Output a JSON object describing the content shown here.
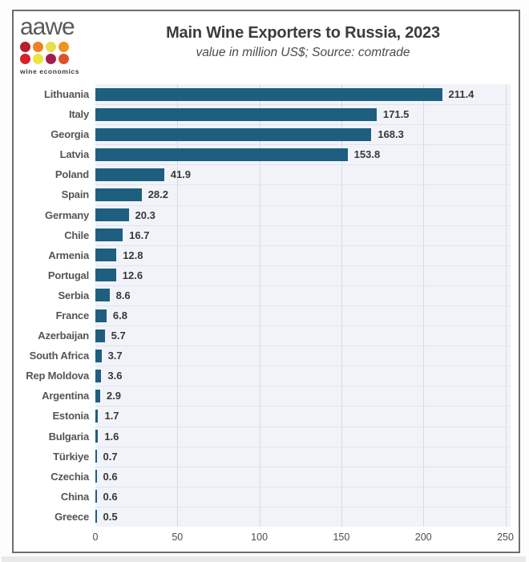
{
  "logo": {
    "name": "aawe",
    "tagline": "wine economics",
    "dot_colors": [
      "#b5202a",
      "#ef8023",
      "#e9dd4a",
      "#f0931e",
      "#d9202b",
      "#ece43f",
      "#a21d4f",
      "#e05127"
    ]
  },
  "header": {
    "title": "Main Wine Exporters to Russia, 2023",
    "subtitle": "value in million US$; Source: comtrade"
  },
  "chart_data": {
    "type": "bar",
    "orientation": "horizontal",
    "title": "Main Wine Exporters to Russia, 2023",
    "subtitle": "value in million US$; Source: comtrade",
    "xlabel": "",
    "ylabel": "",
    "categories": [
      "Lithuania",
      "Italy",
      "Georgia",
      "Latvia",
      "Poland",
      "Spain",
      "Germany",
      "Chile",
      "Armenia",
      "Portugal",
      "Serbia",
      "France",
      "Azerbaijan",
      "South Africa",
      "Rep Moldova",
      "Argentina",
      "Estonia",
      "Bulgaria",
      "Türkiye",
      "Czechia",
      "China",
      "Greece"
    ],
    "values": [
      211.4,
      171.5,
      168.3,
      153.8,
      41.9,
      28.2,
      20.3,
      16.7,
      12.8,
      12.6,
      8.6,
      6.8,
      5.7,
      3.7,
      3.6,
      2.9,
      1.7,
      1.6,
      0.7,
      0.6,
      0.6,
      0.5
    ],
    "xlim": [
      0,
      250
    ],
    "x_ticks": [
      0,
      50,
      100,
      150,
      200,
      250
    ],
    "grid": true,
    "value_labels": true,
    "bar_color": "#1e5f7f",
    "plot_bg": "#f1f3f9",
    "legend": "none"
  }
}
